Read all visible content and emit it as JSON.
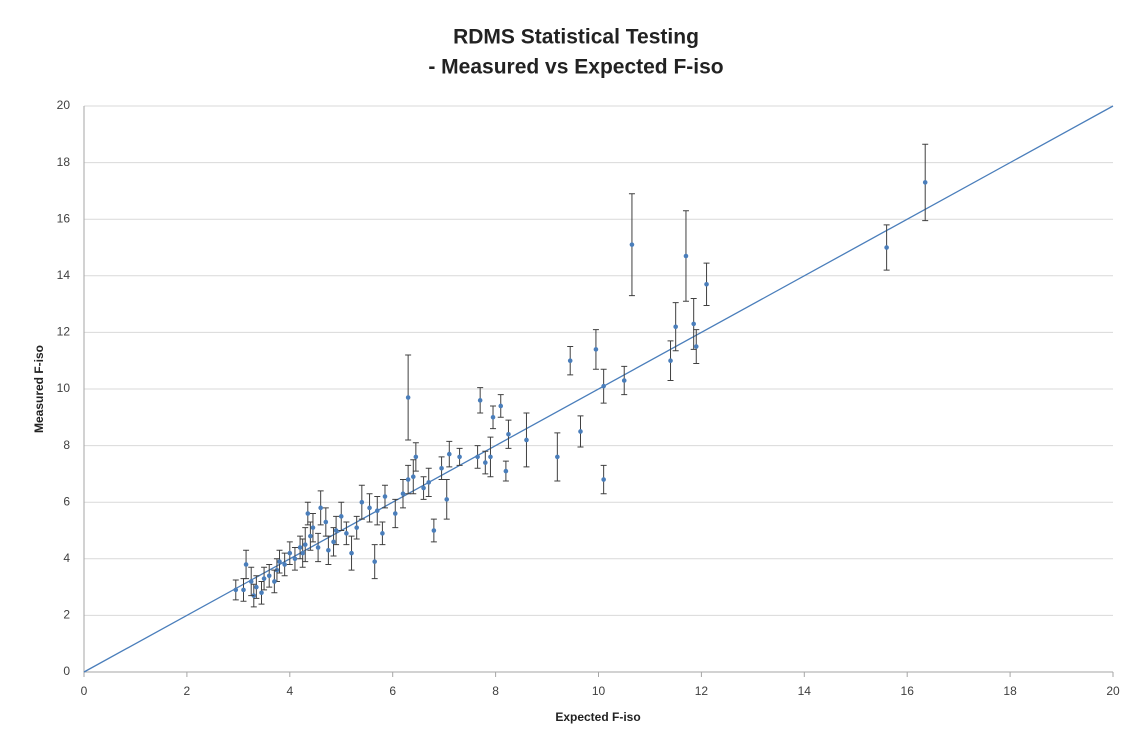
{
  "chart_data": {
    "type": "scatter",
    "title": "RDMS Statistical Testing",
    "subtitle": "- Measured vs Expected F-iso",
    "x_label": "Expected F-iso",
    "y_label": "Measured F-iso",
    "color": "#4a7ebb",
    "error_color": "#404040",
    "x": [
      16.35,
      15.6,
      10.65,
      11.7,
      12.1,
      11.5,
      11.85,
      11.4,
      11.9,
      9.95,
      9.45,
      10.5,
      10.1,
      6.3,
      7.7,
      8.1,
      7.95,
      8.25,
      8.6,
      9.65,
      9.2,
      10.1,
      7.9,
      8.2,
      7.65,
      7.8,
      7.3,
      7.1,
      7.05,
      6.95,
      6.8,
      6.7,
      6.6,
      6.45,
      6.4,
      6.3,
      6.2,
      6.05,
      5.85,
      5.8,
      5.65,
      5.7,
      5.55,
      5.4,
      5.3,
      5.2,
      5.0,
      4.9,
      4.85,
      4.7,
      4.6,
      4.55,
      4.45,
      4.35,
      4.3,
      4.25,
      4.2,
      4.1,
      4.0,
      3.9,
      3.8,
      3.75,
      3.7,
      3.6,
      3.5,
      3.45,
      3.35,
      3.3,
      3.25,
      3.15,
      3.1,
      2.95,
      4.4,
      4.75,
      5.1
    ],
    "values": [
      17.3,
      15.0,
      15.1,
      14.7,
      13.7,
      12.2,
      12.3,
      11.0,
      11.5,
      11.4,
      11.0,
      10.3,
      10.1,
      9.7,
      9.6,
      9.4,
      9.0,
      8.4,
      8.2,
      8.5,
      7.6,
      6.8,
      7.6,
      7.1,
      7.6,
      7.4,
      7.6,
      7.7,
      6.1,
      7.2,
      5.0,
      6.7,
      6.5,
      7.6,
      6.9,
      6.8,
      6.3,
      5.6,
      6.2,
      4.9,
      3.9,
      5.7,
      5.8,
      6.0,
      5.1,
      4.2,
      5.5,
      5.0,
      4.6,
      5.3,
      5.8,
      4.4,
      5.1,
      5.6,
      4.5,
      4.2,
      4.4,
      4.0,
      4.2,
      3.8,
      3.9,
      3.6,
      3.2,
      3.4,
      3.3,
      2.8,
      3.0,
      2.7,
      3.2,
      3.8,
      2.9,
      2.9,
      4.8,
      4.3,
      4.9
    ],
    "errors": [
      1.35,
      0.8,
      1.8,
      1.6,
      0.75,
      0.85,
      0.9,
      0.7,
      0.6,
      0.7,
      0.5,
      0.5,
      0.6,
      1.5,
      0.45,
      0.4,
      0.4,
      0.5,
      0.95,
      0.55,
      0.85,
      0.5,
      0.7,
      0.35,
      0.4,
      0.4,
      0.3,
      0.45,
      0.7,
      0.4,
      0.4,
      0.5,
      0.4,
      0.5,
      0.6,
      0.5,
      0.5,
      0.5,
      0.4,
      0.4,
      0.6,
      0.5,
      0.5,
      0.6,
      0.4,
      0.6,
      0.5,
      0.5,
      0.5,
      0.5,
      0.6,
      0.5,
      0.5,
      0.4,
      0.6,
      0.5,
      0.4,
      0.4,
      0.4,
      0.4,
      0.4,
      0.4,
      0.4,
      0.4,
      0.4,
      0.4,
      0.4,
      0.4,
      0.5,
      0.5,
      0.4,
      0.35,
      0.5,
      0.5,
      0.4
    ],
    "trendline": {
      "x": [
        0,
        20
      ],
      "y": [
        0,
        20
      ]
    },
    "xlim": [
      0,
      20
    ],
    "xticks": [
      0,
      2,
      4,
      6,
      8,
      10,
      12,
      14,
      16,
      18,
      20
    ],
    "ylim": [
      0,
      20
    ],
    "yticks": [
      0,
      2,
      4,
      6,
      8,
      10,
      12,
      14,
      16,
      18,
      20
    ],
    "grid": true
  }
}
